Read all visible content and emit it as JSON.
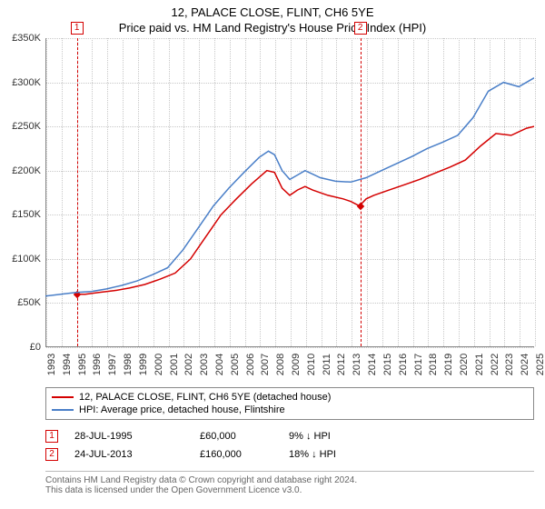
{
  "title_main": "12, PALACE CLOSE, FLINT, CH6 5YE",
  "title_sub": "Price paid vs. HM Land Registry's House Price Index (HPI)",
  "chart": {
    "type": "line",
    "ylim": [
      0,
      350000
    ],
    "ytick_step": 50000,
    "yticks": [
      "£0",
      "£50K",
      "£100K",
      "£150K",
      "£200K",
      "£250K",
      "£300K",
      "£350K"
    ],
    "xlim": [
      1993,
      2025
    ],
    "xticks": [
      1993,
      1994,
      1995,
      1996,
      1997,
      1998,
      1999,
      2000,
      2001,
      2002,
      2003,
      2004,
      2005,
      2006,
      2007,
      2008,
      2009,
      2010,
      2011,
      2012,
      2013,
      2014,
      2015,
      2016,
      2017,
      2018,
      2019,
      2020,
      2021,
      2022,
      2023,
      2024,
      2025
    ],
    "background_color": "#ffffff",
    "grid_color": "#c8c8c8",
    "series": [
      {
        "name": "price_paid",
        "color": "#d40000",
        "line_width": 1.5,
        "points": [
          [
            1995.0,
            60000
          ],
          [
            1995.6,
            60000
          ],
          [
            1996.5,
            62000
          ],
          [
            1997.5,
            64000
          ],
          [
            1998.5,
            67000
          ],
          [
            1999.5,
            71000
          ],
          [
            2000.5,
            77000
          ],
          [
            2001.5,
            84000
          ],
          [
            2002.5,
            100000
          ],
          [
            2003.5,
            125000
          ],
          [
            2004.5,
            150000
          ],
          [
            2005.5,
            168000
          ],
          [
            2006.5,
            185000
          ],
          [
            2007.5,
            200000
          ],
          [
            2008.0,
            198000
          ],
          [
            2008.5,
            180000
          ],
          [
            2009.0,
            172000
          ],
          [
            2009.5,
            178000
          ],
          [
            2010.0,
            182000
          ],
          [
            2010.5,
            178000
          ],
          [
            2011.5,
            172000
          ],
          [
            2012.5,
            168000
          ],
          [
            2013.0,
            165000
          ],
          [
            2013.56,
            160000
          ],
          [
            2014.0,
            168000
          ],
          [
            2014.5,
            172000
          ],
          [
            2015.5,
            178000
          ],
          [
            2016.5,
            184000
          ],
          [
            2017.5,
            190000
          ],
          [
            2018.5,
            197000
          ],
          [
            2019.5,
            204000
          ],
          [
            2020.5,
            212000
          ],
          [
            2021.5,
            228000
          ],
          [
            2022.5,
            242000
          ],
          [
            2023.5,
            240000
          ],
          [
            2024.5,
            248000
          ],
          [
            2025.0,
            250000
          ]
        ]
      },
      {
        "name": "hpi",
        "color": "#4a7fc8",
        "line_width": 1.5,
        "points": [
          [
            1993.0,
            58000
          ],
          [
            1994.0,
            60000
          ],
          [
            1995.0,
            62000
          ],
          [
            1996.0,
            63000
          ],
          [
            1997.0,
            66000
          ],
          [
            1998.0,
            70000
          ],
          [
            1999.0,
            75000
          ],
          [
            2000.0,
            82000
          ],
          [
            2001.0,
            90000
          ],
          [
            2002.0,
            110000
          ],
          [
            2003.0,
            135000
          ],
          [
            2004.0,
            160000
          ],
          [
            2005.0,
            180000
          ],
          [
            2006.0,
            198000
          ],
          [
            2007.0,
            215000
          ],
          [
            2007.6,
            222000
          ],
          [
            2008.0,
            218000
          ],
          [
            2008.5,
            200000
          ],
          [
            2009.0,
            190000
          ],
          [
            2009.5,
            195000
          ],
          [
            2010.0,
            200000
          ],
          [
            2010.5,
            196000
          ],
          [
            2011.0,
            192000
          ],
          [
            2012.0,
            188000
          ],
          [
            2013.0,
            187000
          ],
          [
            2014.0,
            192000
          ],
          [
            2015.0,
            200000
          ],
          [
            2016.0,
            208000
          ],
          [
            2017.0,
            216000
          ],
          [
            2018.0,
            225000
          ],
          [
            2019.0,
            232000
          ],
          [
            2020.0,
            240000
          ],
          [
            2021.0,
            260000
          ],
          [
            2022.0,
            290000
          ],
          [
            2023.0,
            300000
          ],
          [
            2024.0,
            295000
          ],
          [
            2025.0,
            305000
          ]
        ]
      }
    ],
    "markers": [
      {
        "id": "1",
        "x": 1995.0,
        "y": 60000,
        "color": "#d40000"
      },
      {
        "id": "2",
        "x": 2013.56,
        "y": 160000,
        "color": "#d40000"
      }
    ]
  },
  "legend": {
    "items": [
      {
        "color": "#d40000",
        "label": "12, PALACE CLOSE, FLINT, CH6 5YE (detached house)"
      },
      {
        "color": "#4a7fc8",
        "label": "HPI: Average price, detached house, Flintshire"
      }
    ]
  },
  "transactions": [
    {
      "id": "1",
      "color": "#d40000",
      "date": "28-JUL-1995",
      "price": "£60,000",
      "diff": "9% ↓ HPI"
    },
    {
      "id": "2",
      "color": "#d40000",
      "date": "24-JUL-2013",
      "price": "£160,000",
      "diff": "18% ↓ HPI"
    }
  ],
  "footer": {
    "line1": "Contains HM Land Registry data © Crown copyright and database right 2024.",
    "line2": "This data is licensed under the Open Government Licence v3.0."
  }
}
